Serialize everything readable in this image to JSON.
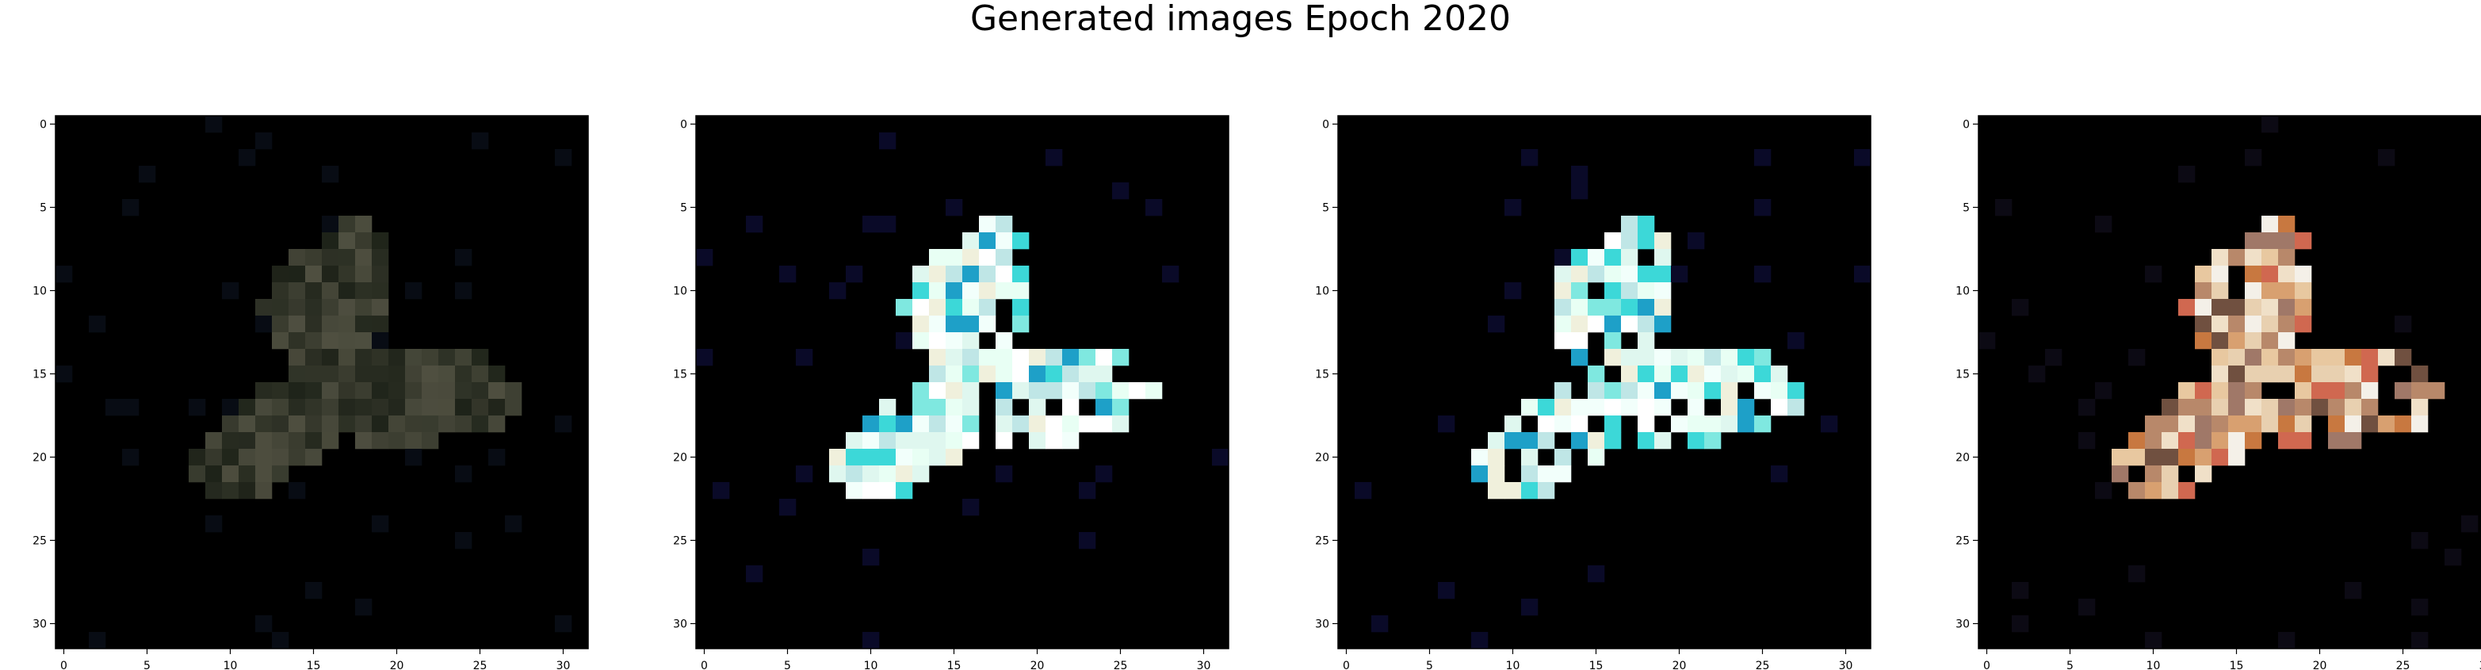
{
  "figure": {
    "title": "Generated images Epoch 2020"
  },
  "axes": {
    "x_ticks": [
      "0",
      "5",
      "10",
      "15",
      "20",
      "25",
      "30"
    ],
    "y_ticks": [
      "0",
      "5",
      "10",
      "15",
      "20",
      "25",
      "30"
    ],
    "tick_values": [
      0,
      5,
      10,
      15,
      20,
      25,
      30
    ],
    "pixel_grid": [
      32,
      32
    ],
    "background_color": "#000000"
  },
  "panels": [
    {
      "name": "generated-image-1",
      "style": "dim"
    },
    {
      "name": "generated-image-2",
      "style": "bright-cyan"
    },
    {
      "name": "generated-image-3",
      "style": "bright-cyan"
    },
    {
      "name": "generated-image-4",
      "style": "warm-saturated"
    }
  ]
}
